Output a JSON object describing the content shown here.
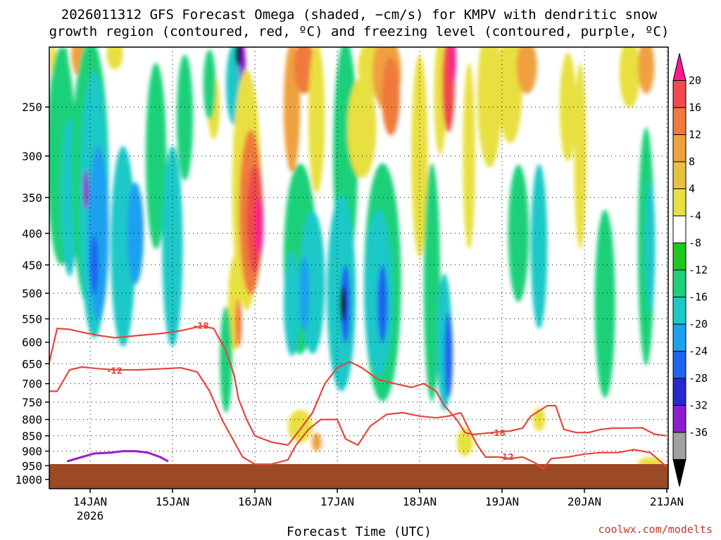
{
  "chart_data": {
    "type": "heatmap",
    "title_line1": "2026011312 GFS Forecast Omega (shaded, −cm/s) for KMPV with dendritic snow",
    "title_line2": "growth region (contoured, red, ºC) and freezing level (contoured, purple, ºC)",
    "xlabel": "Forecast Time (UTC)",
    "credit": "coolwx.com/modelts",
    "x_ticks": [
      {
        "label": "14JAN",
        "sub": "2026",
        "day": 1
      },
      {
        "label": "15JAN",
        "sub": "",
        "day": 2
      },
      {
        "label": "16JAN",
        "sub": "",
        "day": 3
      },
      {
        "label": "17JAN",
        "sub": "",
        "day": 4
      },
      {
        "label": "18JAN",
        "sub": "",
        "day": 5
      },
      {
        "label": "19JAN",
        "sub": "",
        "day": 6
      },
      {
        "label": "20JAN",
        "sub": "",
        "day": 7
      },
      {
        "label": "21JAN",
        "sub": "",
        "day": 8
      }
    ],
    "x_range_days": [
      0.5,
      8.0
    ],
    "y_ticks": [
      250,
      300,
      350,
      400,
      450,
      500,
      550,
      600,
      650,
      700,
      750,
      800,
      850,
      900,
      950,
      1000
    ],
    "y_range_hpa": [
      200,
      1035
    ],
    "colorbar": {
      "labels": [
        20,
        16,
        12,
        8,
        4,
        -4,
        -8,
        -12,
        -16,
        -20,
        -24,
        -28,
        -32,
        -36
      ],
      "colors": [
        "#ff1a8c",
        "#f04a4a",
        "#f07a3a",
        "#f0a040",
        "#e8c040",
        "#e8e040",
        "#ffffff",
        "#1ec81e",
        "#1ed07a",
        "#1ec8c8",
        "#1ea0f0",
        "#1e64f0",
        "#2828d0",
        "#8c1ed0",
        "#a0a0a0",
        "#000000"
      ]
    },
    "omega_cells": [
      {
        "x": 0.55,
        "p": 210,
        "w": 0.08,
        "h": 40,
        "v": 6
      },
      {
        "x": 0.7,
        "p": 230,
        "w": 0.1,
        "h": 70,
        "v": -9
      },
      {
        "x": 0.85,
        "p": 205,
        "w": 0.15,
        "h": 60,
        "v": 10
      },
      {
        "x": 1.0,
        "p": 210,
        "w": 0.2,
        "h": 50,
        "v": 14
      },
      {
        "x": 1.3,
        "p": 205,
        "w": 0.2,
        "h": 40,
        "v": 6
      },
      {
        "x": 0.65,
        "p": 300,
        "w": 0.35,
        "h": 300,
        "v": -9
      },
      {
        "x": 0.75,
        "p": 350,
        "w": 0.2,
        "h": 200,
        "v": -13
      },
      {
        "x": 1.0,
        "p": 320,
        "w": 0.45,
        "h": 450,
        "v": -10
      },
      {
        "x": 1.05,
        "p": 360,
        "w": 0.35,
        "h": 360,
        "v": -14
      },
      {
        "x": 1.1,
        "p": 400,
        "w": 0.25,
        "h": 250,
        "v": -17
      },
      {
        "x": 1.05,
        "p": 450,
        "w": 0.1,
        "h": 100,
        "v": -22
      },
      {
        "x": 0.95,
        "p": 340,
        "w": 0.04,
        "h": 50,
        "v": -28
      },
      {
        "x": 1.4,
        "p": 420,
        "w": 0.3,
        "h": 300,
        "v": -13
      },
      {
        "x": 1.55,
        "p": 400,
        "w": 0.2,
        "h": 150,
        "v": -17
      },
      {
        "x": 1.8,
        "p": 300,
        "w": 0.25,
        "h": 200,
        "v": -9
      },
      {
        "x": 2.0,
        "p": 420,
        "w": 0.25,
        "h": 300,
        "v": -13
      },
      {
        "x": 2.15,
        "p": 260,
        "w": 0.2,
        "h": 120,
        "v": -9
      },
      {
        "x": 2.5,
        "p": 250,
        "w": 0.15,
        "h": 60,
        "v": 6
      },
      {
        "x": 2.45,
        "p": 230,
        "w": 0.15,
        "h": 60,
        "v": -9
      },
      {
        "x": 2.75,
        "p": 230,
        "w": 0.2,
        "h": 80,
        "v": -13
      },
      {
        "x": 2.85,
        "p": 215,
        "w": 0.08,
        "h": 50,
        "v": -28
      },
      {
        "x": 2.8,
        "p": 205,
        "w": 0.04,
        "h": 30,
        "v": -36
      },
      {
        "x": 2.9,
        "p": 340,
        "w": 0.35,
        "h": 300,
        "v": 6
      },
      {
        "x": 2.95,
        "p": 370,
        "w": 0.28,
        "h": 220,
        "v": 12
      },
      {
        "x": 3.0,
        "p": 380,
        "w": 0.2,
        "h": 150,
        "v": 17
      },
      {
        "x": 3.05,
        "p": 390,
        "w": 0.1,
        "h": 80,
        "v": 21
      },
      {
        "x": 2.75,
        "p": 520,
        "w": 0.15,
        "h": 180,
        "v": 6
      },
      {
        "x": 2.8,
        "p": 560,
        "w": 0.08,
        "h": 100,
        "v": 13
      },
      {
        "x": 2.65,
        "p": 640,
        "w": 0.15,
        "h": 250,
        "v": -9
      },
      {
        "x": 3.45,
        "p": 250,
        "w": 0.2,
        "h": 150,
        "v": 8
      },
      {
        "x": 3.6,
        "p": 215,
        "w": 0.25,
        "h": 60,
        "v": 12
      },
      {
        "x": 3.75,
        "p": 260,
        "w": 0.2,
        "h": 180,
        "v": 6
      },
      {
        "x": 3.55,
        "p": 440,
        "w": 0.4,
        "h": 300,
        "v": -10
      },
      {
        "x": 3.7,
        "p": 480,
        "w": 0.3,
        "h": 250,
        "v": -14
      },
      {
        "x": 3.6,
        "p": 500,
        "w": 0.12,
        "h": 140,
        "v": -19
      },
      {
        "x": 3.45,
        "p": 520,
        "w": 0.2,
        "h": 200,
        "v": -15
      },
      {
        "x": 3.55,
        "p": 820,
        "w": 0.3,
        "h": 100,
        "v": 6
      },
      {
        "x": 3.75,
        "p": 870,
        "w": 0.12,
        "h": 60,
        "v": 10
      },
      {
        "x": 4.1,
        "p": 300,
        "w": 0.3,
        "h": 350,
        "v": -9
      },
      {
        "x": 4.05,
        "p": 500,
        "w": 0.35,
        "h": 350,
        "v": -14
      },
      {
        "x": 4.1,
        "p": 520,
        "w": 0.12,
        "h": 150,
        "v": -22
      },
      {
        "x": 4.07,
        "p": 520,
        "w": 0.03,
        "h": 70,
        "v": -36
      },
      {
        "x": 4.5,
        "p": 215,
        "w": 0.5,
        "h": 70,
        "v": 7
      },
      {
        "x": 4.6,
        "p": 220,
        "w": 0.35,
        "h": 90,
        "v": 10
      },
      {
        "x": 4.65,
        "p": 240,
        "w": 0.22,
        "h": 70,
        "v": 15
      },
      {
        "x": 4.3,
        "p": 270,
        "w": 0.35,
        "h": 100,
        "v": 6
      },
      {
        "x": 4.55,
        "p": 480,
        "w": 0.45,
        "h": 400,
        "v": -11
      },
      {
        "x": 4.5,
        "p": 500,
        "w": 0.35,
        "h": 300,
        "v": -15
      },
      {
        "x": 4.55,
        "p": 520,
        "w": 0.12,
        "h": 150,
        "v": -21
      },
      {
        "x": 5.0,
        "p": 300,
        "w": 0.2,
        "h": 250,
        "v": 6
      },
      {
        "x": 5.25,
        "p": 240,
        "w": 0.15,
        "h": 140,
        "v": 6
      },
      {
        "x": 5.35,
        "p": 230,
        "w": 0.15,
        "h": 110,
        "v": 18
      },
      {
        "x": 5.4,
        "p": 210,
        "w": 0.08,
        "h": 60,
        "v": 21
      },
      {
        "x": 5.15,
        "p": 480,
        "w": 0.2,
        "h": 400,
        "v": -10
      },
      {
        "x": 5.3,
        "p": 600,
        "w": 0.18,
        "h": 300,
        "v": -14
      },
      {
        "x": 5.35,
        "p": 630,
        "w": 0.1,
        "h": 200,
        "v": -20
      },
      {
        "x": 5.6,
        "p": 300,
        "w": 0.15,
        "h": 200,
        "v": 6
      },
      {
        "x": 5.55,
        "p": 870,
        "w": 0.2,
        "h": 90,
        "v": 6
      },
      {
        "x": 5.85,
        "p": 240,
        "w": 0.3,
        "h": 200,
        "v": 6
      },
      {
        "x": 6.1,
        "p": 230,
        "w": 0.3,
        "h": 160,
        "v": 6
      },
      {
        "x": 6.3,
        "p": 215,
        "w": 0.25,
        "h": 60,
        "v": 8
      },
      {
        "x": 6.2,
        "p": 400,
        "w": 0.25,
        "h": 200,
        "v": -9
      },
      {
        "x": 6.45,
        "p": 420,
        "w": 0.2,
        "h": 250,
        "v": -13
      },
      {
        "x": 6.45,
        "p": 800,
        "w": 0.15,
        "h": 70,
        "v": 7
      },
      {
        "x": 6.8,
        "p": 250,
        "w": 0.2,
        "h": 100,
        "v": 6
      },
      {
        "x": 6.95,
        "p": 300,
        "w": 0.15,
        "h": 200,
        "v": 6
      },
      {
        "x": 7.25,
        "p": 520,
        "w": 0.25,
        "h": 350,
        "v": -9
      },
      {
        "x": 7.55,
        "p": 220,
        "w": 0.25,
        "h": 80,
        "v": 6
      },
      {
        "x": 7.75,
        "p": 215,
        "w": 0.2,
        "h": 60,
        "v": 10
      },
      {
        "x": 7.75,
        "p": 420,
        "w": 0.2,
        "h": 350,
        "v": -9
      },
      {
        "x": 7.8,
        "p": 420,
        "w": 0.12,
        "h": 200,
        "v": -13
      },
      {
        "x": 7.8,
        "p": 940,
        "w": 0.3,
        "h": 40,
        "v": 6
      }
    ],
    "series": [
      {
        "name": "dendritic -18C",
        "label": "-18",
        "label_x": 2.35,
        "label_p": 565,
        "x": [
          0.5,
          0.6,
          0.75,
          0.9,
          1.1,
          1.3,
          1.6,
          1.9,
          2.1,
          2.35,
          2.5,
          2.65,
          2.75,
          2.8,
          2.9,
          3.0,
          3.2,
          3.4,
          3.55,
          3.7,
          3.85,
          4.0,
          4.15,
          4.3,
          4.5,
          4.7,
          4.9,
          5.05,
          5.2,
          5.3
        ],
        "p": [
          650,
          570,
          572,
          578,
          585,
          590,
          585,
          580,
          575,
          565,
          570,
          620,
          680,
          740,
          800,
          850,
          870,
          880,
          830,
          780,
          700,
          660,
          645,
          660,
          690,
          700,
          710,
          700,
          720,
          760
        ]
      },
      {
        "name": "dendritic -12C",
        "label": "-12",
        "label_x": 1.3,
        "label_p": 668,
        "x": [
          0.5,
          0.6,
          0.75,
          0.9,
          1.1,
          1.3,
          1.6,
          1.9,
          2.1,
          2.3,
          2.45,
          2.6,
          2.75,
          2.85,
          3.0,
          3.2,
          3.4,
          3.5,
          3.65,
          3.8,
          4.0,
          4.1,
          4.25,
          4.4,
          4.6,
          4.8,
          5.0,
          5.2,
          5.35,
          5.5
        ],
        "p": [
          720,
          720,
          665,
          658,
          662,
          665,
          665,
          662,
          660,
          670,
          720,
          800,
          870,
          920,
          945,
          945,
          930,
          880,
          830,
          800,
          800,
          860,
          880,
          820,
          785,
          780,
          790,
          795,
          790,
          780
        ]
      },
      {
        "name": "dendritic -18C east",
        "label": "-18",
        "label_x": 5.95,
        "label_p": 842,
        "x": [
          5.3,
          5.45,
          5.55,
          5.65,
          5.8,
          5.95,
          6.1,
          6.25,
          6.35,
          6.45,
          6.55,
          6.65,
          6.75,
          6.9,
          7.05,
          7.2,
          7.35,
          7.5,
          7.7,
          7.85,
          8.0
        ],
        "p": [
          760,
          800,
          840,
          846,
          842,
          838,
          835,
          826,
          790,
          775,
          760,
          760,
          830,
          840,
          840,
          830,
          826,
          826,
          825,
          845,
          850
        ]
      },
      {
        "name": "dendritic -12C east",
        "label": "-12",
        "label_x": 6.05,
        "label_p": 920,
        "x": [
          5.5,
          5.6,
          5.7,
          5.8,
          5.95,
          6.1,
          6.25,
          6.4,
          6.5,
          6.6,
          6.8,
          7.0,
          7.2,
          7.4,
          7.6,
          7.8,
          8.0
        ],
        "p": [
          780,
          830,
          880,
          920,
          920,
          925,
          920,
          940,
          960,
          925,
          920,
          910,
          905,
          905,
          895,
          905,
          955
        ]
      },
      {
        "name": "freezing level",
        "label": "",
        "x": [
          0.72,
          0.9,
          1.05,
          1.25,
          1.4,
          1.55,
          1.7,
          1.85,
          1.95
        ],
        "p": [
          935,
          920,
          908,
          905,
          900,
          900,
          905,
          920,
          935
        ]
      }
    ]
  }
}
